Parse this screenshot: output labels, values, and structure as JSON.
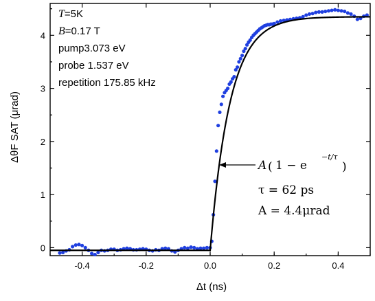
{
  "chart_data": {
    "type": "scatter",
    "xlabel": "Δt (ns)",
    "ylabel": "ΔθF SAT (μrad)",
    "xlim": [
      -0.5,
      0.5
    ],
    "ylim": [
      -0.15,
      4.6
    ],
    "x_ticks": [
      "-0.4",
      "-0.2",
      "0.0",
      "0.2",
      "0.4"
    ],
    "x_tick_values": [
      -0.4,
      -0.2,
      0.0,
      0.2,
      0.4
    ],
    "y_ticks": [
      "0",
      "1",
      "2",
      "3",
      "4"
    ],
    "y_tick_values": [
      0,
      1,
      2,
      3,
      4
    ],
    "grid": false,
    "info_lines": [
      {
        "italic": "T",
        "text": "=5K"
      },
      {
        "italic": "B",
        "text": "=0.17 T"
      },
      {
        "italic": "",
        "text": "pump3.073 eV"
      },
      {
        "italic": "",
        "text": "probe 1.537 eV"
      },
      {
        "italic": "",
        "text": "repetition 175.85 kHz"
      }
    ],
    "annotation": {
      "formula_left": "A",
      "formula_main": "1 − e",
      "exponent": "−t/τ",
      "tau": "τ = 62 ps",
      "amplitude": "A = 4.4μrad"
    },
    "fit": {
      "model": "A(1 - exp(-t/tau))",
      "A": 4.4,
      "tau_ns": 0.062,
      "baseline": -0.05,
      "t0": 0.0
    },
    "series": [
      {
        "marker": "circle",
        "color": "#1f3fe0",
        "x": [
          -0.47,
          -0.46,
          -0.45,
          -0.44,
          -0.43,
          -0.42,
          -0.41,
          -0.4,
          -0.39,
          -0.38,
          -0.37,
          -0.36,
          -0.35,
          -0.34,
          -0.33,
          -0.32,
          -0.31,
          -0.3,
          -0.29,
          -0.28,
          -0.27,
          -0.26,
          -0.25,
          -0.24,
          -0.23,
          -0.22,
          -0.21,
          -0.2,
          -0.19,
          -0.18,
          -0.17,
          -0.16,
          -0.15,
          -0.14,
          -0.13,
          -0.12,
          -0.11,
          -0.1,
          -0.09,
          -0.08,
          -0.07,
          -0.06,
          -0.05,
          -0.04,
          -0.03,
          -0.02,
          -0.01,
          0.0,
          0.005,
          0.01,
          0.015,
          0.02,
          0.025,
          0.03,
          0.035,
          0.04,
          0.045,
          0.05,
          0.055,
          0.06,
          0.065,
          0.07,
          0.075,
          0.08,
          0.085,
          0.09,
          0.095,
          0.1,
          0.105,
          0.11,
          0.115,
          0.12,
          0.125,
          0.13,
          0.135,
          0.14,
          0.145,
          0.15,
          0.155,
          0.16,
          0.165,
          0.17,
          0.175,
          0.18,
          0.185,
          0.19,
          0.195,
          0.2,
          0.21,
          0.22,
          0.23,
          0.24,
          0.25,
          0.26,
          0.27,
          0.28,
          0.29,
          0.3,
          0.31,
          0.32,
          0.33,
          0.34,
          0.35,
          0.36,
          0.37,
          0.38,
          0.39,
          0.4,
          0.41,
          0.42,
          0.43,
          0.44,
          0.45,
          0.46,
          0.47,
          0.48,
          0.49
        ],
        "y": [
          -0.1,
          -0.09,
          -0.06,
          -0.04,
          0.02,
          0.05,
          0.06,
          0.04,
          0.0,
          -0.05,
          -0.11,
          -0.13,
          -0.09,
          -0.05,
          -0.06,
          -0.05,
          -0.03,
          -0.03,
          -0.05,
          -0.04,
          -0.02,
          -0.01,
          -0.02,
          -0.04,
          -0.04,
          -0.03,
          -0.02,
          -0.03,
          -0.05,
          -0.06,
          -0.04,
          -0.05,
          -0.02,
          -0.01,
          -0.02,
          -0.06,
          -0.08,
          -0.05,
          -0.02,
          0.0,
          -0.01,
          0.01,
          0.0,
          -0.02,
          -0.01,
          -0.01,
          0.0,
          0.0,
          0.12,
          0.62,
          1.25,
          1.82,
          2.3,
          2.55,
          2.7,
          2.85,
          2.92,
          2.96,
          3.0,
          3.08,
          3.12,
          3.18,
          3.22,
          3.35,
          3.4,
          3.5,
          3.56,
          3.62,
          3.7,
          3.75,
          3.82,
          3.87,
          3.91,
          3.96,
          4.0,
          4.03,
          4.06,
          4.09,
          4.12,
          4.14,
          4.16,
          4.18,
          4.19,
          4.2,
          4.2,
          4.21,
          4.21,
          4.22,
          4.25,
          4.27,
          4.28,
          4.29,
          4.3,
          4.31,
          4.32,
          4.33,
          4.35,
          4.38,
          4.4,
          4.41,
          4.43,
          4.44,
          4.44,
          4.45,
          4.46,
          4.47,
          4.48,
          4.47,
          4.46,
          4.45,
          4.42,
          4.4,
          4.36,
          4.3,
          4.32,
          4.36,
          4.38
        ]
      }
    ]
  }
}
